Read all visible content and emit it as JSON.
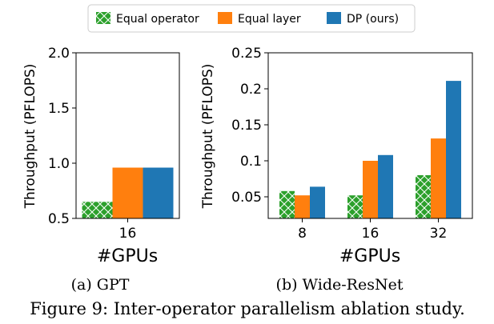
{
  "legend": {
    "items": [
      {
        "label": "Equal operator",
        "color": "#2ca02c",
        "hatch": true
      },
      {
        "label": "Equal layer",
        "color": "#ff7f0e",
        "hatch": false
      },
      {
        "label": "DP (ours)",
        "color": "#1f77b4",
        "hatch": false
      }
    ]
  },
  "figure_caption": "Figure 9: Inter-operator parallelism ablation study.",
  "chart_data": [
    {
      "type": "bar",
      "caption": "(a) GPT",
      "xlabel": "#GPUs",
      "ylabel": "Throughput (PFLOPS)",
      "ylim": [
        0.5,
        2.0
      ],
      "yticks": [
        "0.5",
        "1.0",
        "1.5",
        "2.0"
      ],
      "categories": [
        "16"
      ],
      "series": [
        {
          "name": "Equal operator",
          "values": [
            0.65
          ]
        },
        {
          "name": "Equal layer",
          "values": [
            0.96
          ]
        },
        {
          "name": "DP (ours)",
          "values": [
            0.96
          ]
        }
      ]
    },
    {
      "type": "bar",
      "caption": "(b) Wide-ResNet",
      "xlabel": "#GPUs",
      "ylabel": "Throughput (PFLOPS)",
      "ylim": [
        0.02,
        0.25
      ],
      "yticks": [
        "0.05",
        "0.1",
        "0.15",
        "0.2",
        "0.25"
      ],
      "categories": [
        "8",
        "16",
        "32"
      ],
      "series": [
        {
          "name": "Equal operator",
          "values": [
            0.058,
            0.052,
            0.08
          ]
        },
        {
          "name": "Equal layer",
          "values": [
            0.052,
            0.1,
            0.131
          ]
        },
        {
          "name": "DP (ours)",
          "values": [
            0.064,
            0.108,
            0.211
          ]
        }
      ]
    }
  ]
}
